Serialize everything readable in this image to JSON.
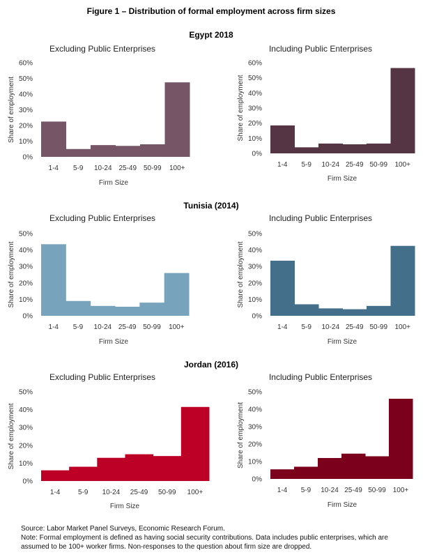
{
  "figure_title": "Figure 1 – Distribution of formal employment across firm sizes",
  "source": "Source: Labor Market Panel Surveys, Economic Research Forum.",
  "note": "Note: Formal employment is defined as having social security contributions. Data includes public enterprises, which are assumed to be 100+ worker firms. Non-responses to the question about firm size are dropped.",
  "chart_data": [
    {
      "type": "bar",
      "panel_title": "Egypt 2018",
      "title": "Excluding Public Enterprises",
      "xlabel": "Firm Size",
      "ylabel": "Share of employment",
      "categories": [
        "1-4",
        "5-9",
        "10-24",
        "25-49",
        "50-99",
        "100+"
      ],
      "values": [
        22.5,
        5,
        7.5,
        7,
        8,
        47.5
      ],
      "ylim": [
        0,
        60
      ],
      "yticks": [
        "0%",
        "10%",
        "20%",
        "30%",
        "40%",
        "50%",
        "60%"
      ],
      "color": "#765566"
    },
    {
      "type": "bar",
      "panel_title": "Egypt 2018",
      "title": "Including Public Enterprises",
      "xlabel": "Firm Size",
      "ylabel": "Share of employment",
      "categories": [
        "1-4",
        "5-9",
        "10-24",
        "25-49",
        "50-99",
        "100+"
      ],
      "values": [
        18.5,
        4,
        6.5,
        6,
        6.5,
        56.5
      ],
      "ylim": [
        0,
        60
      ],
      "yticks": [
        "0%",
        "10%",
        "20%",
        "30%",
        "40%",
        "50%",
        "60%"
      ],
      "color": "#553444"
    },
    {
      "type": "bar",
      "panel_title": "Tunisia (2014)",
      "title": "Excluding Public Enterprises",
      "xlabel": "Firm Size",
      "ylabel": "Share of employment",
      "categories": [
        "1-4",
        "5-9",
        "10-24",
        "25-49",
        "50-99",
        "100+"
      ],
      "values": [
        43.5,
        9,
        6,
        5.5,
        8,
        26
      ],
      "ylim": [
        0,
        50
      ],
      "yticks": [
        "0%",
        "10%",
        "20%",
        "30%",
        "40%",
        "50%"
      ],
      "color": "#78a3bc"
    },
    {
      "type": "bar",
      "panel_title": "Tunisia (2014)",
      "title": "Including Public Enterprises",
      "xlabel": "Firm Size",
      "ylabel": "Share of employment",
      "categories": [
        "1-4",
        "5-9",
        "10-24",
        "25-49",
        "50-99",
        "100+"
      ],
      "values": [
        33.5,
        7,
        4.5,
        4,
        6,
        42.5
      ],
      "ylim": [
        0,
        50
      ],
      "yticks": [
        "0%",
        "10%",
        "20%",
        "30%",
        "40%",
        "50%"
      ],
      "color": "#436f8a"
    },
    {
      "type": "bar",
      "panel_title": "Jordan (2016)",
      "title": "Excluding Public Enterprises",
      "xlabel": "Firm Size",
      "ylabel": "Share of employment",
      "categories": [
        "1-4",
        "5-9",
        "10-24",
        "25-49",
        "50-99",
        "100+"
      ],
      "values": [
        6,
        8,
        13,
        15,
        14,
        41.5
      ],
      "ylim": [
        0,
        50
      ],
      "yticks": [
        "0%",
        "10%",
        "20%",
        "30%",
        "40%",
        "50%"
      ],
      "color": "#bd0026"
    },
    {
      "type": "bar",
      "panel_title": "Jordan (2016)",
      "title": "Including Public Enterprises",
      "xlabel": "Firm Size",
      "ylabel": "Share of employment",
      "categories": [
        "1-4",
        "5-9",
        "10-24",
        "25-49",
        "50-99",
        "100+"
      ],
      "values": [
        5.5,
        7,
        12,
        14.5,
        13,
        46
      ],
      "ylim": [
        0,
        50
      ],
      "yticks": [
        "0%",
        "10%",
        "20%",
        "30%",
        "40%",
        "50%"
      ],
      "color": "#7a001b"
    }
  ]
}
